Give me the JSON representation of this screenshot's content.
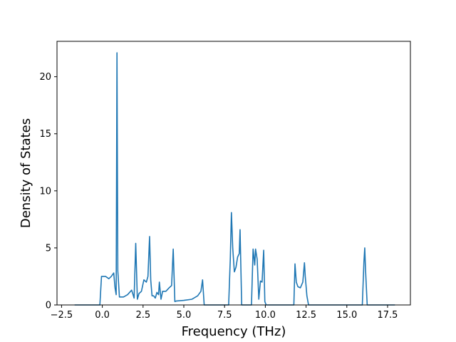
{
  "chart_data": {
    "type": "line",
    "xlabel": "Frequency (THz)",
    "ylabel": "Density of States",
    "xlim": [
      -2.78,
      18.9
    ],
    "ylim": [
      0,
      23.1
    ],
    "grid": false,
    "legend": "none",
    "line_color": "#1f77b4",
    "xticks": [
      -2.5,
      0.0,
      2.5,
      5.0,
      7.5,
      10.0,
      12.5,
      15.0,
      17.5
    ],
    "xtick_labels": [
      "−2.5",
      "0.0",
      "2.5",
      "5.0",
      "7.5",
      "10.0",
      "12.5",
      "15.0",
      "17.5"
    ],
    "yticks": [
      0,
      5,
      10,
      15,
      20
    ],
    "ytick_labels": [
      "0",
      "5",
      "10",
      "15",
      "20"
    ],
    "series": [
      {
        "x": [
          -1.7,
          -0.15,
          -0.05,
          0.2,
          0.4,
          0.55,
          0.7,
          0.78,
          0.85,
          0.9,
          0.95,
          1.05,
          1.3,
          1.55,
          1.8,
          1.95,
          2.05,
          2.15,
          2.25,
          2.4,
          2.55,
          2.7,
          2.8,
          2.9,
          2.97,
          3.05,
          3.15,
          3.25,
          3.35,
          3.45,
          3.5,
          3.6,
          3.7,
          3.9,
          4.1,
          4.25,
          4.35,
          4.45,
          4.55,
          5.0,
          5.5,
          5.85,
          6.05,
          6.15,
          6.25,
          7.75,
          7.85,
          7.92,
          8.0,
          8.1,
          8.2,
          8.3,
          8.4,
          8.45,
          8.55,
          9.15,
          9.25,
          9.35,
          9.4,
          9.5,
          9.6,
          9.7,
          9.8,
          9.9,
          9.97,
          10.05,
          11.75,
          11.82,
          11.9,
          12.0,
          12.15,
          12.3,
          12.4,
          12.45,
          12.55,
          12.65,
          15.95,
          16.05,
          16.1,
          16.15,
          16.25,
          17.95
        ],
        "y": [
          0,
          0,
          2.5,
          2.5,
          2.3,
          2.5,
          2.8,
          1.5,
          0.9,
          22.1,
          3.0,
          0.7,
          0.7,
          0.9,
          1.3,
          0.6,
          5.4,
          0.5,
          1.0,
          1.2,
          2.2,
          2.0,
          2.5,
          6.0,
          2.2,
          0.8,
          0.8,
          0.6,
          1.1,
          0.9,
          2.0,
          0.5,
          1.2,
          1.2,
          1.5,
          1.7,
          4.9,
          0.3,
          0.35,
          0.4,
          0.5,
          0.8,
          1.2,
          2.2,
          0,
          0,
          4.0,
          8.1,
          5.0,
          2.9,
          3.3,
          4.2,
          4.5,
          6.6,
          0,
          0,
          4.9,
          3.5,
          4.9,
          4.0,
          0.5,
          2.1,
          2.0,
          4.8,
          0.3,
          0,
          0,
          3.6,
          2.0,
          1.6,
          1.5,
          2.0,
          3.7,
          2.5,
          0.8,
          0,
          0,
          3.8,
          5.0,
          3.0,
          0,
          0
        ]
      }
    ]
  }
}
